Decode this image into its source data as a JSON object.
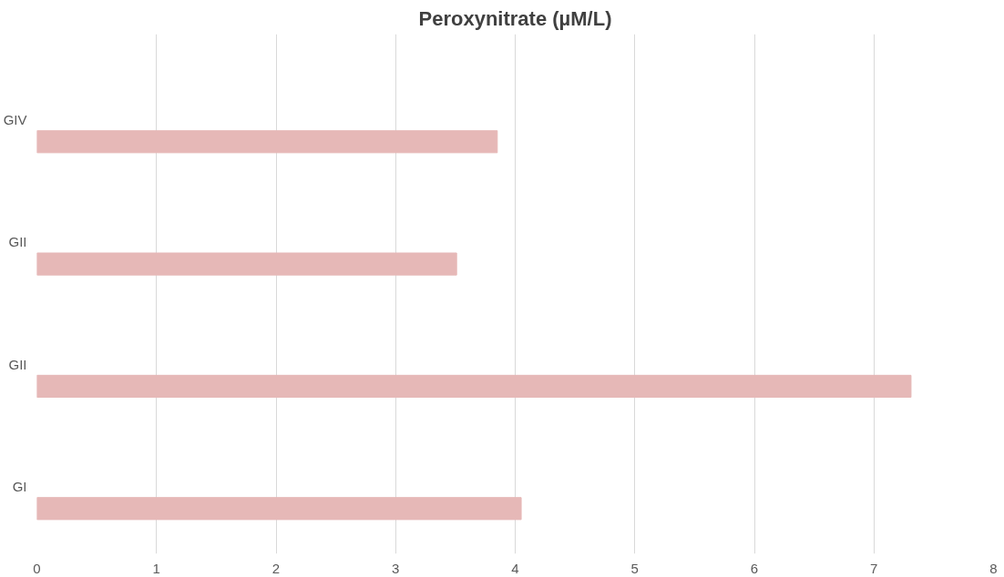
{
  "chart_data": {
    "type": "bar",
    "orientation": "horizontal",
    "title": "Peroxynitrate (µM/L)",
    "categories": [
      "GIV",
      "GII",
      "GII",
      "GI"
    ],
    "values": [
      3.85,
      3.51,
      7.31,
      4.05
    ],
    "color": "#e6b8b7",
    "xlim": [
      0,
      8
    ],
    "xticks": [
      0,
      1,
      2,
      3,
      4,
      5,
      6,
      7,
      8
    ],
    "grid": "x"
  }
}
